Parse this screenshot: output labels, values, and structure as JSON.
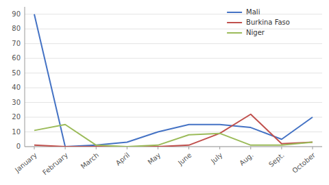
{
  "chart_data": {
    "type": "line",
    "categories": [
      "January",
      "February",
      "March",
      "April",
      "May",
      "June",
      "July",
      "Aug.",
      "Sept.",
      "October"
    ],
    "series": [
      {
        "name": "Mali",
        "color": "#4472C4",
        "values": [
          90,
          0,
          1,
          3,
          10,
          15,
          15,
          13,
          5,
          20
        ]
      },
      {
        "name": "Burkina Faso",
        "color": "#C0504D",
        "values": [
          1,
          0,
          0,
          0,
          0,
          1,
          9,
          22,
          2,
          3
        ]
      },
      {
        "name": "Niger",
        "color": "#9BBB59",
        "values": [
          11,
          15,
          1,
          0,
          1,
          8,
          9,
          1,
          1,
          3
        ]
      }
    ],
    "ylim": [
      0,
      95
    ],
    "yticks": [
      0,
      10,
      20,
      30,
      40,
      50,
      60,
      70,
      80,
      90
    ],
    "grid": true,
    "legend": "upper right"
  }
}
